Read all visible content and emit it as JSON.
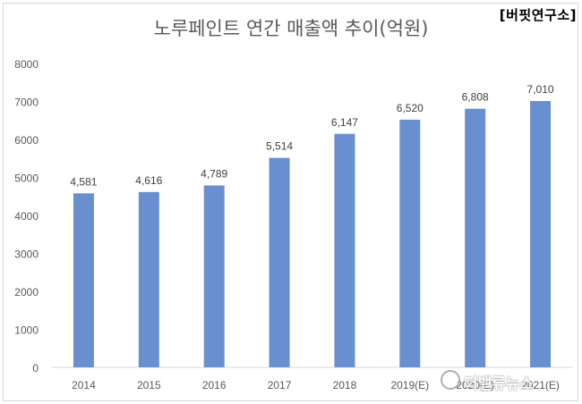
{
  "source_tag": "[버핏연구소]",
  "watermark": "더밸류뉴스",
  "chart_data": {
    "type": "bar",
    "title": "노루페인트 연간 매출액 추이(억원)",
    "categories": [
      "2014",
      "2015",
      "2016",
      "2017",
      "2018",
      "2019(E)",
      "2020(E)",
      "2021(E)"
    ],
    "values": [
      4581,
      4616,
      4789,
      5514,
      6147,
      6520,
      6808,
      7010
    ],
    "value_labels": [
      "4,581",
      "4,616",
      "4,789",
      "5,514",
      "6,147",
      "6,520",
      "6,808",
      "7,010"
    ],
    "ylim": [
      0,
      8000
    ],
    "yticks": [
      0,
      1000,
      2000,
      3000,
      4000,
      5000,
      6000,
      7000,
      8000
    ],
    "grid": false,
    "legend": "none",
    "colors": {
      "bar": "#6a8fd0",
      "text": "#595959",
      "axis": "#d9d9d9"
    }
  }
}
